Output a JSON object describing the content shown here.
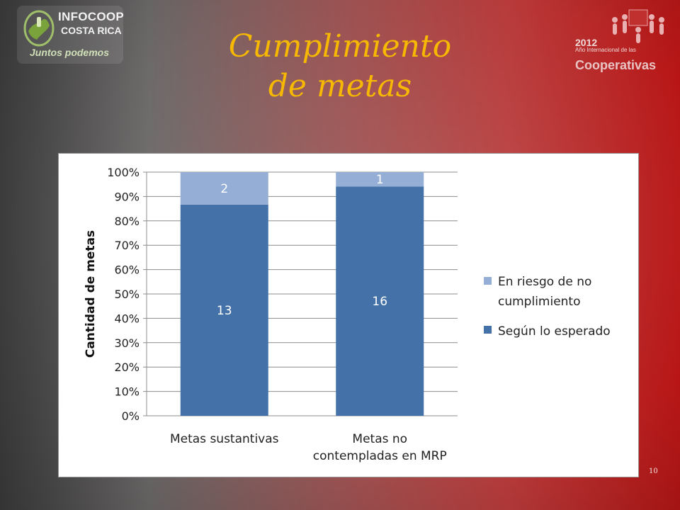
{
  "slide": {
    "title_line1": "Cumplimiento",
    "title_line2": "de metas",
    "page_number": "10"
  },
  "logo_left": {
    "brand_line1": "INFOCOOP",
    "brand_line2": "COSTA RICA",
    "tagline": "Juntos podemos"
  },
  "logo_right": {
    "year": "2012",
    "subtitle": "Año Internacional de las",
    "word": "Cooperativas"
  },
  "colors": {
    "series_bottom": "#4472a8",
    "series_top": "#94aed6",
    "title": "#f6b800"
  },
  "chart_data": {
    "type": "bar",
    "stacked": true,
    "percent": true,
    "ylabel": "Cantidad de metas",
    "ylim": [
      0,
      100
    ],
    "yticks": [
      "0%",
      "10%",
      "20%",
      "30%",
      "40%",
      "50%",
      "60%",
      "70%",
      "80%",
      "90%",
      "100%"
    ],
    "categories": [
      [
        "Metas sustantivas"
      ],
      [
        "Metas no",
        "contempladas en MRP"
      ]
    ],
    "series": [
      {
        "name": "Según lo esperado",
        "values": [
          13,
          16
        ],
        "color": "#4472a8"
      },
      {
        "name": "En riesgo de no cumplimiento",
        "legend_lines": [
          "En riesgo de no",
          "cumplimiento"
        ],
        "values": [
          2,
          1
        ],
        "color": "#94aed6"
      }
    ],
    "legend_placement": "right",
    "grid": true
  }
}
